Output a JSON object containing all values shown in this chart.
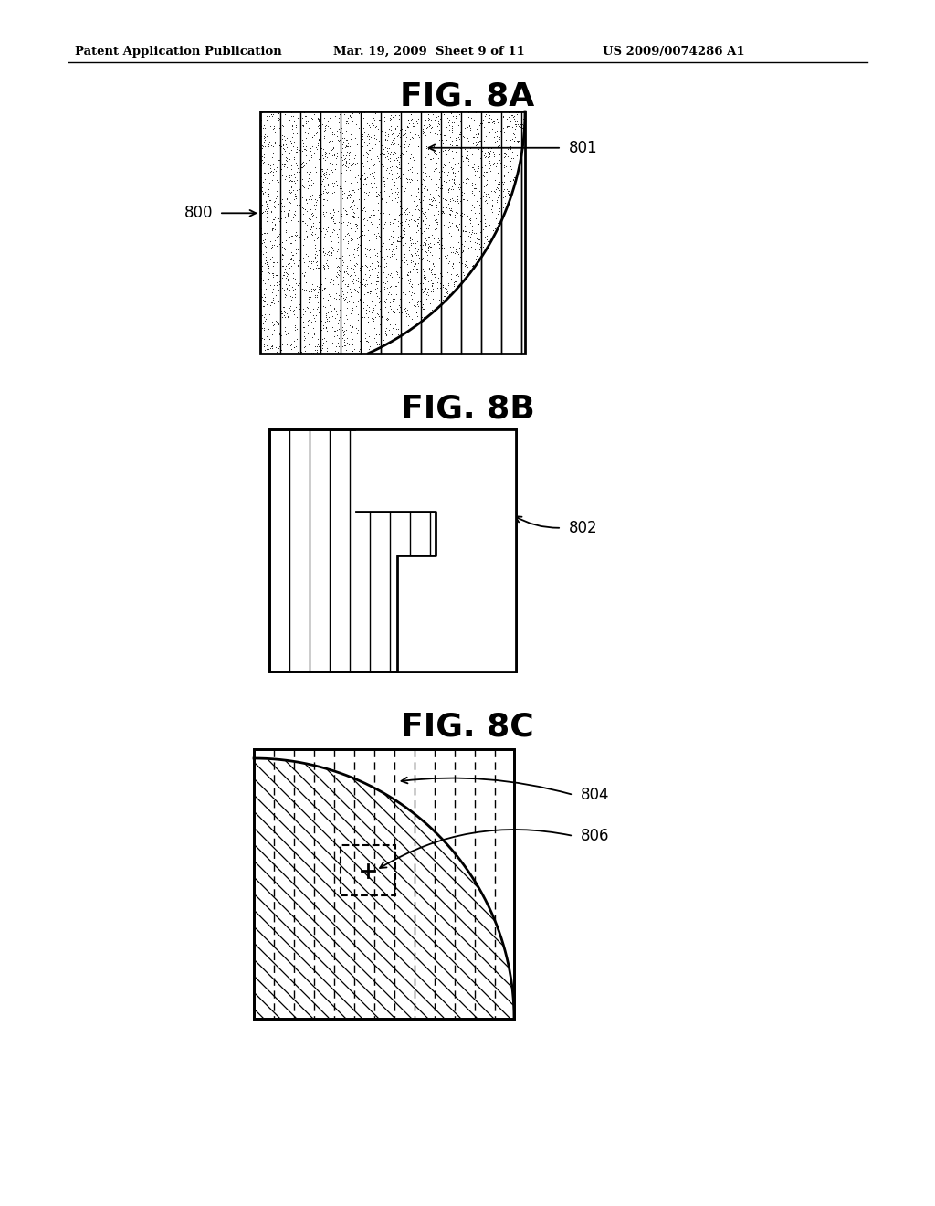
{
  "bg_color": "#ffffff",
  "header_text1": "Patent Application Publication",
  "header_text2": "Mar. 19, 2009  Sheet 9 of 11",
  "header_text3": "US 2009/0074286 A1",
  "fig8a_title": "FIG. 8A",
  "fig8b_title": "FIG. 8B",
  "fig8c_title": "FIG. 8C",
  "label_800": "800",
  "label_801": "801",
  "label_802": "802",
  "label_804": "804",
  "label_806": "806",
  "header_fontsize": 9.5,
  "title_fontsize": 26,
  "label_fontsize": 12
}
